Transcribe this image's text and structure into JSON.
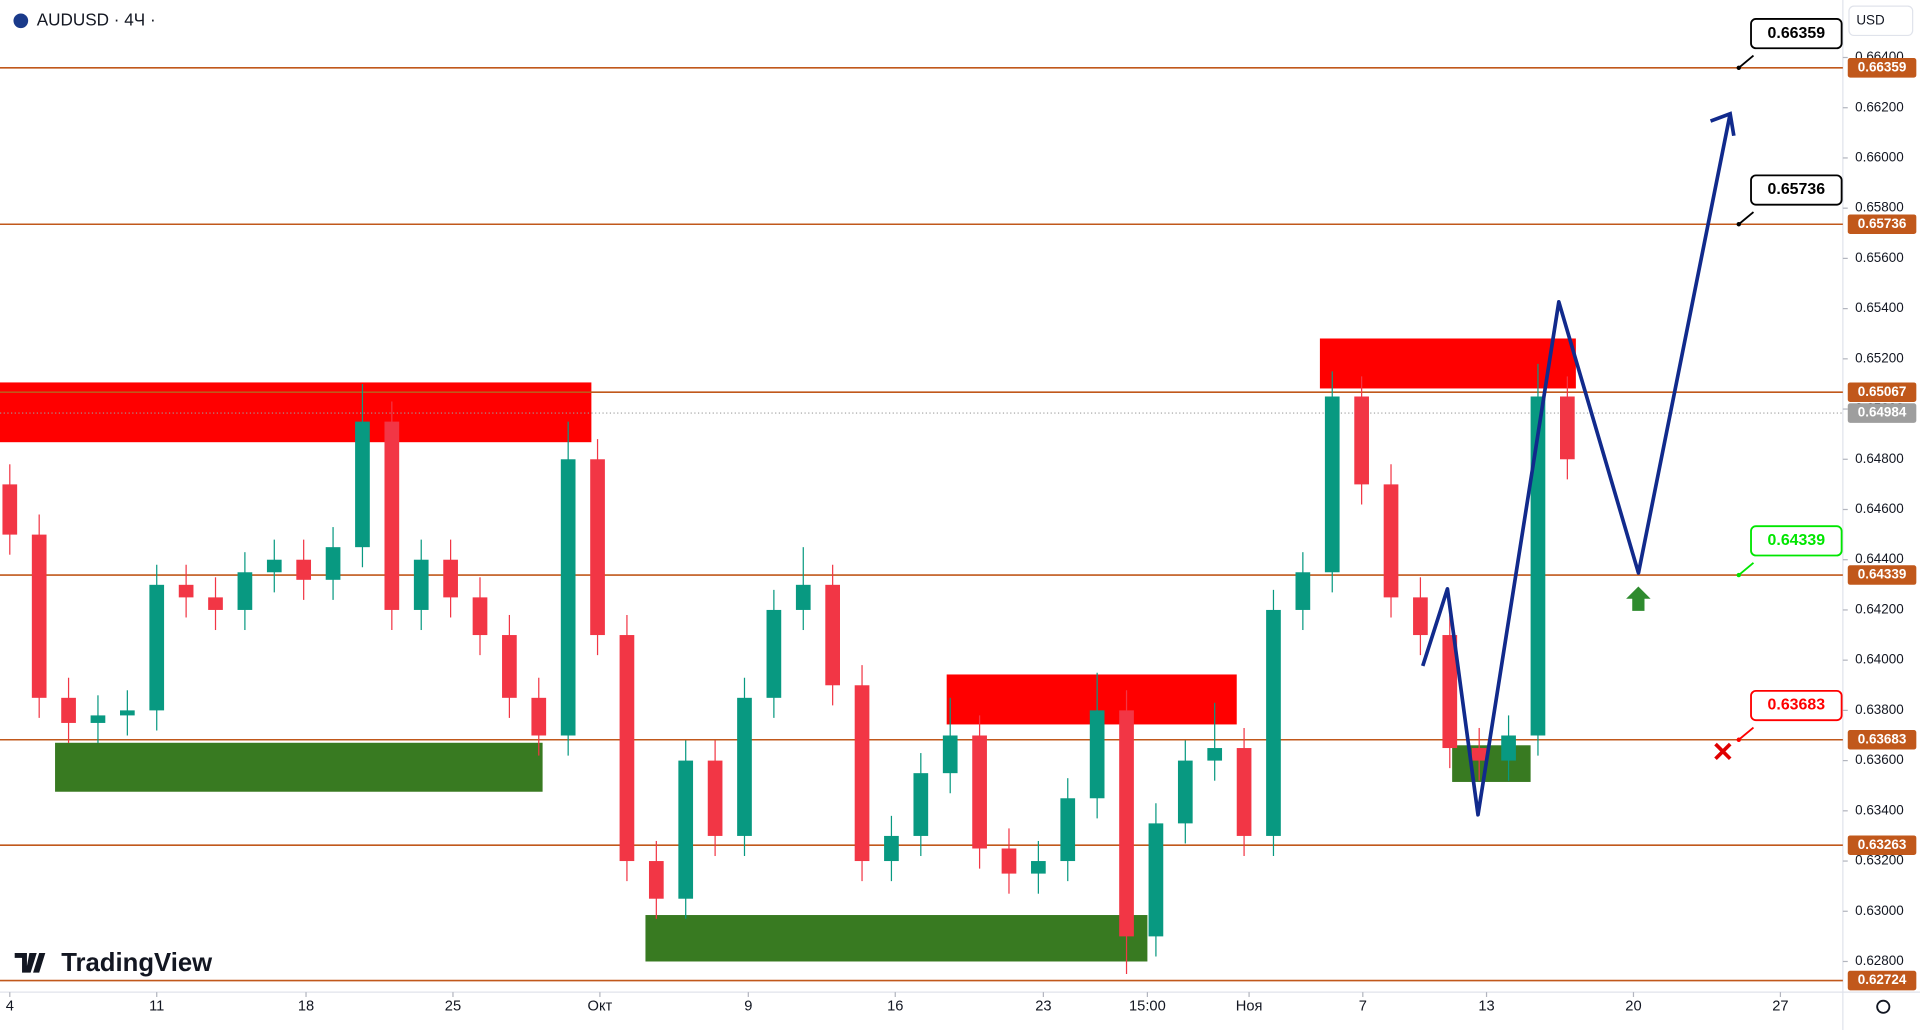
{
  "chart_data": {
    "type": "candlestick",
    "title": "AUDUSD · 4Ч ·",
    "currency": "USD",
    "brand": "TradingView",
    "xlim": [
      -0.3333,
      62.375
    ],
    "ylim": [
      0.62678,
      0.66629
    ],
    "xticks": [
      {
        "value": 0,
        "label": "4"
      },
      {
        "value": 5,
        "label": "11"
      },
      {
        "value": 10.08,
        "label": "18"
      },
      {
        "value": 15.08,
        "label": "25"
      },
      {
        "value": 20.08,
        "label": "Окт"
      },
      {
        "value": 25.13,
        "label": "9"
      },
      {
        "value": 30.13,
        "label": "16"
      },
      {
        "value": 35.17,
        "label": "23"
      },
      {
        "value": 38.71,
        "label": "15:00"
      },
      {
        "value": 42.17,
        "label": "Ноя"
      },
      {
        "value": 46.04,
        "label": "7"
      },
      {
        "value": 50.25,
        "label": "13"
      },
      {
        "value": 55.25,
        "label": "20"
      },
      {
        "value": 60.25,
        "label": "27"
      }
    ],
    "yticks": [
      {
        "value": 0.628,
        "label": "0.62800"
      },
      {
        "value": 0.63,
        "label": "0.63000"
      },
      {
        "value": 0.632,
        "label": "0.63200"
      },
      {
        "value": 0.634,
        "label": "0.63400"
      },
      {
        "value": 0.636,
        "label": "0.63600"
      },
      {
        "value": 0.638,
        "label": "0.63800"
      },
      {
        "value": 0.64,
        "label": "0.64000"
      },
      {
        "value": 0.642,
        "label": "0.64200"
      },
      {
        "value": 0.644,
        "label": "0.64400"
      },
      {
        "value": 0.646,
        "label": "0.64600"
      },
      {
        "value": 0.648,
        "label": "0.64800"
      },
      {
        "value": 0.65,
        "label": "0.65000"
      },
      {
        "value": 0.652,
        "label": "0.65200"
      },
      {
        "value": 0.654,
        "label": "0.65400"
      },
      {
        "value": 0.656,
        "label": "0.65600"
      },
      {
        "value": 0.658,
        "label": "0.65800"
      },
      {
        "value": 0.66,
        "label": "0.66000"
      },
      {
        "value": 0.662,
        "label": "0.66200"
      },
      {
        "value": 0.664,
        "label": "0.66400"
      }
    ],
    "up_color": "#089981",
    "down_color": "#f23645",
    "open": [
      0.647,
      0.645,
      0.6385,
      0.6375,
      0.6378,
      0.638,
      0.643,
      0.6425,
      0.642,
      0.6435,
      0.644,
      0.6432,
      0.6445,
      0.6495,
      0.642,
      0.644,
      0.6425,
      0.641,
      0.6385,
      0.637,
      0.648,
      0.641,
      0.632,
      0.6305,
      0.636,
      0.633,
      0.6385,
      0.642,
      0.643,
      0.639,
      0.632,
      0.633,
      0.6355,
      0.637,
      0.6325,
      0.6315,
      0.632,
      0.6345,
      0.638,
      0.629,
      0.6335,
      0.636,
      0.6365,
      0.633,
      0.642,
      0.6435,
      0.6505,
      0.647,
      0.6425,
      0.641,
      0.6365,
      0.636,
      0.637,
      0.6505
    ],
    "high": [
      0.6478,
      0.6458,
      0.6393,
      0.6386,
      0.6388,
      0.6438,
      0.6438,
      0.6433,
      0.6443,
      0.6448,
      0.6448,
      0.6453,
      0.651,
      0.6503,
      0.6448,
      0.6448,
      0.6433,
      0.6418,
      0.6393,
      0.6495,
      0.6488,
      0.6418,
      0.6328,
      0.6368,
      0.6368,
      0.6393,
      0.6428,
      0.6445,
      0.6438,
      0.6398,
      0.6338,
      0.6363,
      0.6385,
      0.6378,
      0.6333,
      0.6328,
      0.6353,
      0.6395,
      0.6388,
      0.6343,
      0.6368,
      0.6383,
      0.6373,
      0.6428,
      0.6443,
      0.6515,
      0.6513,
      0.6478,
      0.6433,
      0.6418,
      0.6373,
      0.6378,
      0.6518,
      0.6513
    ],
    "low": [
      0.6442,
      0.6377,
      0.6367,
      0.6367,
      0.637,
      0.6372,
      0.6417,
      0.6412,
      0.6412,
      0.6427,
      0.6424,
      0.6424,
      0.6437,
      0.6412,
      0.6412,
      0.6417,
      0.6402,
      0.6377,
      0.6362,
      0.6362,
      0.6402,
      0.6312,
      0.6297,
      0.6297,
      0.6322,
      0.6322,
      0.6377,
      0.6412,
      0.6382,
      0.6312,
      0.6312,
      0.6322,
      0.6347,
      0.6317,
      0.6307,
      0.6307,
      0.6312,
      0.6337,
      0.6275,
      0.6282,
      0.6327,
      0.6352,
      0.6322,
      0.6322,
      0.6412,
      0.6427,
      0.6462,
      0.6417,
      0.6402,
      0.6357,
      0.6352,
      0.6352,
      0.6362,
      0.6472
    ],
    "close": [
      0.645,
      0.6385,
      0.6375,
      0.6378,
      0.638,
      0.643,
      0.6425,
      0.642,
      0.6435,
      0.644,
      0.6432,
      0.6445,
      0.6495,
      0.642,
      0.644,
      0.6425,
      0.641,
      0.6385,
      0.637,
      0.648,
      0.641,
      0.632,
      0.6305,
      0.636,
      0.633,
      0.6385,
      0.642,
      0.643,
      0.639,
      0.632,
      0.633,
      0.6355,
      0.637,
      0.6325,
      0.6315,
      0.632,
      0.6345,
      0.638,
      0.629,
      0.6335,
      0.636,
      0.6365,
      0.633,
      0.642,
      0.6435,
      0.6505,
      0.647,
      0.6425,
      0.641,
      0.6365,
      0.636,
      0.637,
      0.6505,
      0.648
    ],
    "level_color": "#c1581b",
    "levels": [
      0.66359,
      0.65736,
      0.65067,
      0.64339,
      0.63683,
      0.63263,
      0.62724
    ],
    "last_price": 0.64984,
    "last_price_color": "#9e9e9e",
    "zones": [
      {
        "start": -0.3333,
        "end": 19.79,
        "top": 0.65106,
        "bottom": 0.64868,
        "color": "#ff0000"
      },
      {
        "start": 31.88,
        "end": 41.75,
        "top": 0.63943,
        "bottom": 0.63744,
        "color": "#ff0000"
      },
      {
        "start": 44.58,
        "end": 53.29,
        "top": 0.65281,
        "bottom": 0.65082,
        "color": "#ff0000"
      },
      {
        "start": 1.54,
        "end": 18.13,
        "top": 0.63671,
        "bottom": 0.63476,
        "color": "#387a21"
      },
      {
        "start": 21.63,
        "end": 38.71,
        "top": 0.62985,
        "bottom": 0.628,
        "color": "#387a21"
      },
      {
        "start": 49.08,
        "end": 51.75,
        "top": 0.63661,
        "bottom": 0.63515,
        "color": "#387a21"
      }
    ],
    "projection": {
      "color": "#112a8c",
      "x": [
        48.08,
        48.92,
        49.96,
        52.71,
        55.42,
        58.54
      ],
      "values": [
        0.63977,
        0.64284,
        0.63384,
        0.65427,
        0.64347,
        0.66176
      ]
    },
    "callouts": [
      {
        "value": 0.66359,
        "color": "#000000"
      },
      {
        "value": 0.65736,
        "color": "#000000"
      },
      {
        "value": 0.64339,
        "color": "#00e600"
      },
      {
        "value": 0.63683,
        "color": "#ff0000"
      }
    ]
  }
}
